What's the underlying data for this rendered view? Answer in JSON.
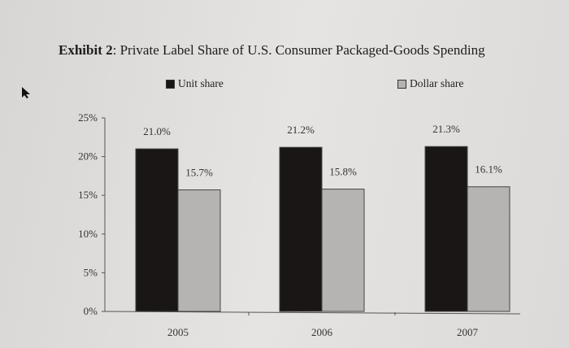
{
  "title_bold": "Exhibit 2",
  "title_rest": ": Private Label Share of U.S. Consumer Packaged-Goods Spending",
  "chart_data": {
    "type": "bar",
    "title": "Exhibit 2: Private Label Share of U.S. Consumer Packaged-Goods Spending",
    "categories": [
      "2005",
      "2006",
      "2007"
    ],
    "series": [
      {
        "name": "Unit share",
        "values": [
          21.0,
          21.2,
          21.3
        ],
        "labels": [
          "21.0%",
          "21.2%",
          "21.3%"
        ],
        "color": "#1a1616"
      },
      {
        "name": "Dollar share",
        "values": [
          15.7,
          15.8,
          16.1
        ],
        "labels": [
          "15.7%",
          "15.8%",
          "16.1%"
        ],
        "color": "#b5b4b2"
      }
    ],
    "ylim": [
      0,
      25
    ],
    "yticks": [
      "0%",
      "5%",
      "10%",
      "15%",
      "20%",
      "25%"
    ],
    "legend": "top",
    "grid": false
  }
}
